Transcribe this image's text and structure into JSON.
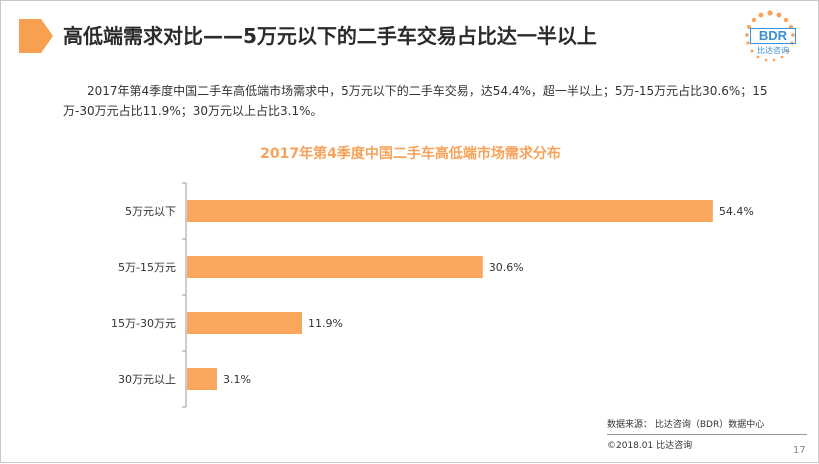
{
  "header": {
    "title": "高低端需求对比——5万元以下的二手车交易占比达一半以上",
    "logo_text": "BDR",
    "logo_sub": "比达咨询"
  },
  "summary": "2017年第4季度中国二手车高低端市场需求中，5万元以下的二手车交易，达54.4%，超一半以上；5万-15万元占比30.6%；15万-30万元占比11.9%；30万元以上占比3.1%。",
  "chart_data": {
    "type": "bar",
    "orientation": "horizontal",
    "title": "2017年第4季度中国二手车高低端市场需求分布",
    "categories": [
      "5万元以下",
      "5万-15万元",
      "15万-30万元",
      "30万元以上"
    ],
    "values": [
      54.4,
      30.6,
      11.9,
      3.1
    ],
    "value_labels": [
      "54.4%",
      "30.6%",
      "11.9%",
      "3.1%"
    ],
    "xlim": [
      0,
      60
    ],
    "grid": false,
    "legend": "none",
    "bar_color": "#f9a75d"
  },
  "footer": {
    "source": "数据来源： 比达咨询（BDR）数据中心",
    "copyright": "©2018.01   比达咨询",
    "page": "17"
  },
  "colors": {
    "accent": "#f6a25a",
    "marker": "#f7a04f",
    "logo": "#3a8fd6"
  }
}
